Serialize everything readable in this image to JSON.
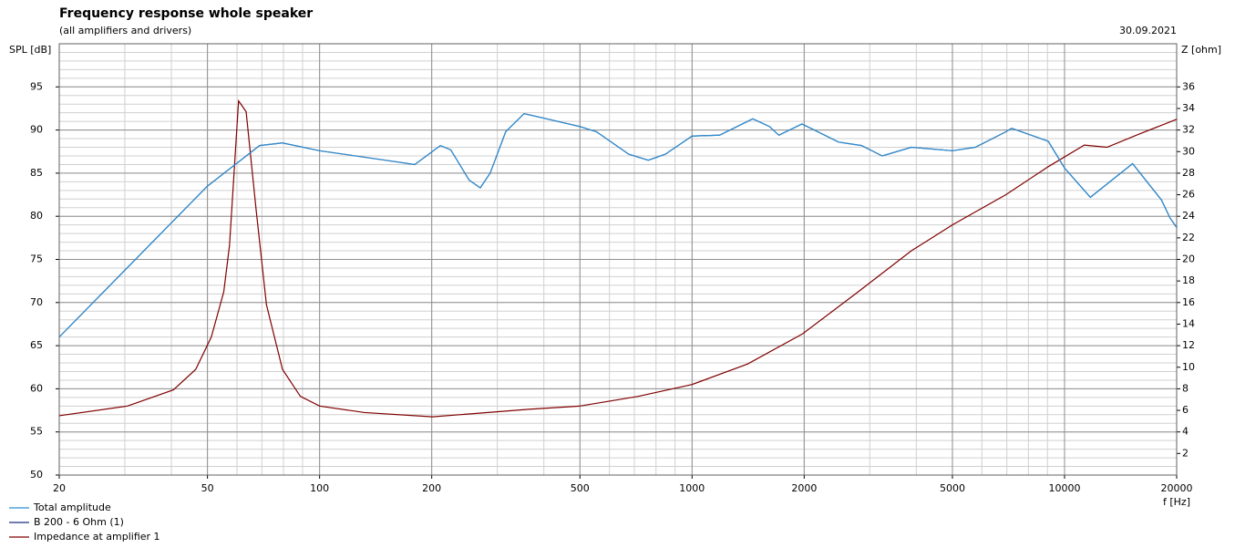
{
  "chart_data": {
    "type": "line",
    "title": "Frequency response whole speaker",
    "subtitle": "(all amplifiers and drivers)",
    "date": "30.09.2021",
    "ylabel": "SPL [dB]",
    "y2label": "Z [ohm]",
    "xlabel": "f [Hz]",
    "xscale": "log",
    "xlim": [
      20,
      20000
    ],
    "xticks": [
      20,
      50,
      100,
      200,
      500,
      1000,
      2000,
      5000,
      10000,
      20000
    ],
    "ylim": [
      50,
      100
    ],
    "yticks": [
      50,
      55,
      60,
      65,
      70,
      75,
      80,
      85,
      90,
      95
    ],
    "y2lim": [
      0,
      40
    ],
    "y2ticks": [
      2,
      4,
      6,
      8,
      10,
      12,
      14,
      16,
      18,
      20,
      22,
      24,
      26,
      28,
      30,
      32,
      34,
      36
    ],
    "grid": true,
    "minor_grid": true,
    "legend": "bottom-left",
    "series": [
      {
        "name": "Total amplitude",
        "color": "#2f8fd0",
        "x": [
          20,
          50,
          69,
          79.5,
          100,
          156,
          180,
          211,
          225,
          252,
          270,
          287,
          316,
          354,
          407,
          500,
          554,
          676,
          763,
          848,
          1000,
          1185,
          1455,
          1615,
          1710,
          1973,
          2473,
          2850,
          3240,
          3880,
          5000,
          5760,
          6960,
          7210,
          9040,
          10000,
          11730,
          13500,
          15230,
          18200,
          19200,
          20000
        ],
        "values": [
          66,
          83.5,
          88.2,
          88.5,
          87.6,
          86.4,
          86.0,
          88.2,
          87.7,
          84.2,
          83.3,
          85,
          89.8,
          91.9,
          91.3,
          90.4,
          89.8,
          87.2,
          86.5,
          87.2,
          89.3,
          89.4,
          91.3,
          90.4,
          89.4,
          90.7,
          88.6,
          88.2,
          87,
          88,
          87.6,
          88,
          89.8,
          90.2,
          88.7,
          85.6,
          82.2,
          84.3,
          86.1,
          81.9,
          79.8,
          78.7
        ]
      },
      {
        "name": "B 200 - 6 Ohm (1)",
        "color": "#1a2f80",
        "x": [
          20,
          50,
          69,
          79.5,
          100,
          156,
          180,
          211,
          225,
          252,
          270,
          287,
          316,
          354,
          407,
          500,
          554,
          676,
          763,
          848,
          1000,
          1185,
          1455,
          1615,
          1710,
          1973,
          2473,
          2850,
          3240,
          3880,
          5000,
          5760,
          6960,
          7210,
          9040,
          10000,
          11730,
          13500,
          15230,
          18200,
          19200,
          20000
        ],
        "values": [
          66,
          83.5,
          88.2,
          88.5,
          87.6,
          86.4,
          86.0,
          88.2,
          87.7,
          84.2,
          83.3,
          85,
          89.8,
          91.9,
          91.3,
          90.4,
          89.8,
          87.2,
          86.5,
          87.2,
          89.3,
          89.4,
          91.3,
          90.4,
          89.4,
          90.7,
          88.6,
          88.2,
          87,
          88,
          87.6,
          88,
          89.8,
          90.2,
          88.7,
          85.6,
          82.2,
          84.3,
          86.1,
          81.9,
          79.8,
          78.7
        ]
      },
      {
        "name": "Impedance at amplifier 1",
        "color": "#800000",
        "axis": "y2",
        "x": [
          20,
          30.5,
          40.5,
          46.5,
          51.2,
          55.3,
          57.3,
          60.6,
          63.5,
          67.5,
          72,
          79.5,
          88.8,
          100,
          132,
          201,
          259,
          364,
          500,
          717,
          1000,
          1410,
          1980,
          2770,
          3880,
          5000,
          6960,
          9040,
          11300,
          13000,
          15800,
          20000
        ],
        "values": [
          5.5,
          6.4,
          7.9,
          9.8,
          12.8,
          17,
          21.3,
          34.7,
          33.7,
          24.7,
          15.8,
          9.8,
          7.3,
          6.4,
          5.8,
          5.4,
          5.7,
          6.1,
          6.4,
          7.3,
          8.4,
          10.3,
          13.1,
          16.9,
          20.8,
          23.2,
          26,
          28.6,
          30.6,
          30.4,
          31.6,
          33
        ]
      }
    ]
  }
}
